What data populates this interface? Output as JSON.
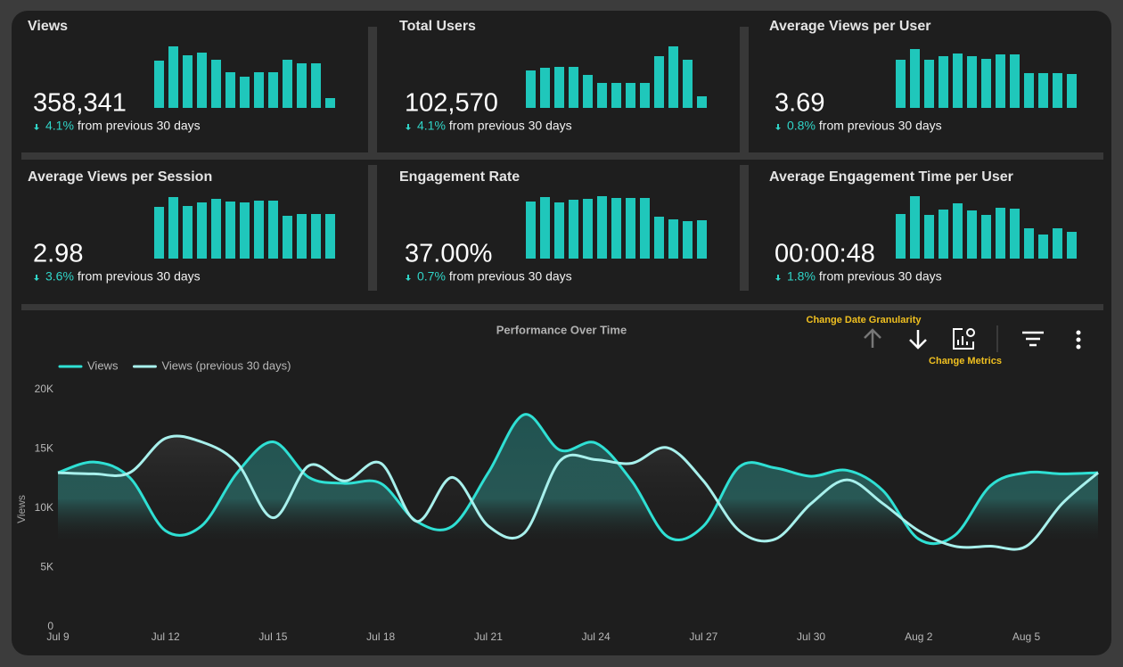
{
  "cards": [
    {
      "title": "Views",
      "value": "358,341",
      "change": "4.1%",
      "change_text": "from previous 30 days",
      "bars": [
        53,
        69,
        59,
        62,
        54,
        40,
        35,
        40,
        40,
        54,
        50,
        50,
        11
      ]
    },
    {
      "title": "Total Users",
      "value": "102,570",
      "change": "4.1%",
      "change_text": "from previous 30 days",
      "bars": [
        42,
        45,
        46,
        46,
        37,
        28,
        28,
        28,
        28,
        58,
        69,
        54,
        13
      ]
    },
    {
      "title": "Average Views per User",
      "value": "3.69",
      "change": "0.8%",
      "change_text": "from previous 30 days",
      "bars": [
        54,
        66,
        54,
        58,
        61,
        58,
        55,
        60,
        60,
        39,
        39,
        39,
        38
      ]
    },
    {
      "title": "Average Views per Session",
      "value": "2.98",
      "change": "3.6%",
      "change_text": "from previous 30 days",
      "bars": [
        58,
        69,
        59,
        63,
        67,
        64,
        63,
        65,
        65,
        48,
        50,
        50,
        50
      ]
    },
    {
      "title": "Engagement Rate",
      "value": "37.00%",
      "change": "0.7%",
      "change_text": "from previous 30 days",
      "bars": [
        64,
        69,
        63,
        66,
        67,
        70,
        68,
        68,
        68,
        47,
        44,
        42,
        43
      ]
    },
    {
      "title": "Average Engagement Time per User",
      "value": "00:00:48",
      "change": "1.8%",
      "change_text": "from previous 30 days",
      "bars": [
        50,
        70,
        49,
        55,
        62,
        54,
        49,
        57,
        56,
        34,
        27,
        34,
        30
      ]
    }
  ],
  "chart_data": {
    "type": "line",
    "title": "Performance Over Time",
    "y_label": "Views",
    "categories": [
      "Jul 9",
      null,
      null,
      "Jul 12",
      null,
      null,
      "Jul 15",
      null,
      null,
      "Jul 18",
      null,
      null,
      "Jul 21",
      null,
      null,
      "Jul 24",
      null,
      null,
      "Jul 27",
      null,
      null,
      "Jul 30",
      null,
      null,
      "Aug 2",
      null,
      null,
      "Aug 5",
      null,
      null
    ],
    "series": [
      {
        "name": "Views",
        "color": "#2fe0d4",
        "values": [
          13000,
          13900,
          12600,
          8100,
          8500,
          13000,
          15600,
          12600,
          12100,
          12100,
          8900,
          8500,
          13000,
          17900,
          14900,
          15500,
          12300,
          7600,
          8500,
          13500,
          13400,
          12700,
          13200,
          11500,
          7400,
          7700,
          11900,
          13000,
          12900,
          13000
        ]
      },
      {
        "name": "Views (previous 30 days)",
        "color": "#a8f0ec",
        "values": [
          13000,
          12900,
          13000,
          15900,
          15600,
          13800,
          9200,
          13600,
          12300,
          13800,
          8900,
          12600,
          8500,
          7900,
          14000,
          14100,
          13800,
          15100,
          12300,
          8100,
          7400,
          10400,
          12400,
          10400,
          8100,
          6800,
          6800,
          6800,
          10400,
          13000
        ]
      }
    ],
    "ylim": [
      0,
      20000
    ],
    "yticks": [
      0,
      {
        "value": 5000,
        "label": "5K"
      },
      {
        "value": 10000,
        "label": "10K"
      },
      {
        "value": 15000,
        "label": "15K"
      },
      {
        "value": 20000,
        "label": "20K"
      }
    ],
    "legend": "top-left"
  },
  "toolbar": {
    "granularity_tip": "Change Date Granularity",
    "metrics_tip": "Change Metrics"
  }
}
